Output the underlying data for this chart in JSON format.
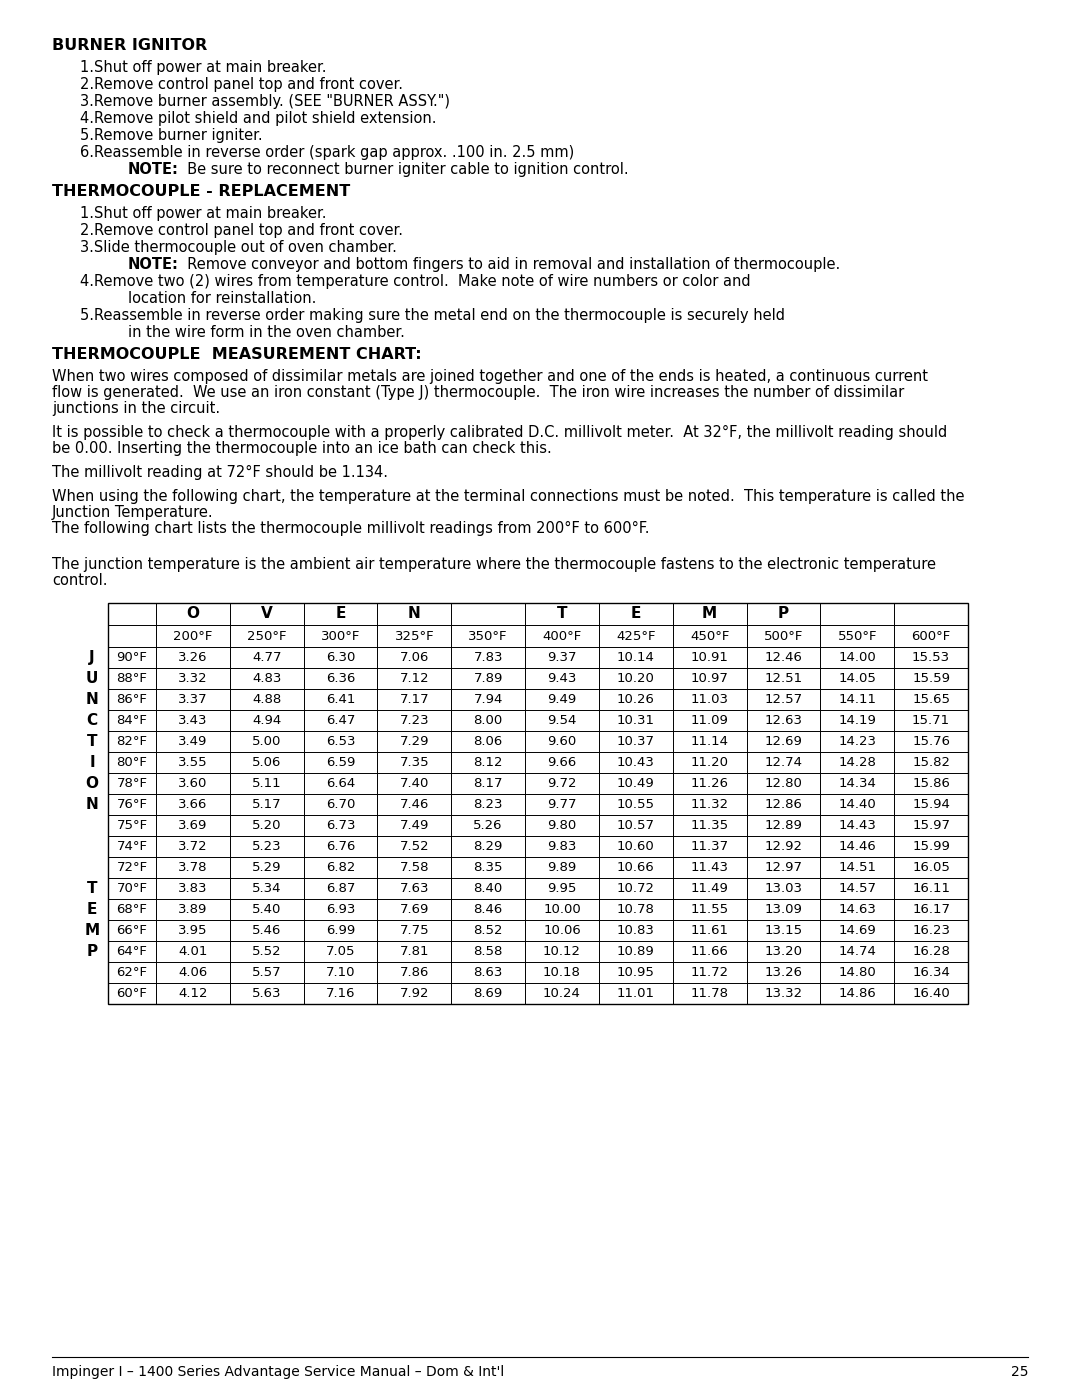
{
  "page_title": "BURNER IGNITOR",
  "burner_ignitor_steps": [
    "1.Shut off power at main breaker.",
    "2.Remove control panel top and front cover.",
    "3.Remove burner assembly. (SEE \"BURNER ASSY.\")",
    "4.Remove pilot shield and pilot shield extension.",
    "5.Remove burner igniter.",
    "6.Reassemble in reverse order (spark gap approx. .100 in. 2.5 mm)"
  ],
  "burner_note": "Be sure to reconnect burner igniter cable to ignition control.",
  "thermocouple_title": "THERMOCOUPLE - REPLACEMENT",
  "thermocouple_steps": [
    "1.Shut off power at main breaker.",
    "2.Remove control panel top and front cover.",
    "3.Slide thermocouple out of oven chamber."
  ],
  "tc_note3": "Remove conveyor and bottom fingers to aid in removal and installation of thermocouple.",
  "tc_step4a": "4.Remove two (2) wires from temperature control.  Make note of wire numbers or color and",
  "tc_step4b": "location for reinstallation.",
  "tc_step5a": "5.Reassemble in reverse order making sure the metal end on the thermocouple is securely held",
  "tc_step5b": "in the wire form in the oven chamber.",
  "measurement_title": "THERMOCOUPLE  MEASUREMENT CHART",
  "para1a": "When two wires composed of dissimilar metals are joined together and one of the ends is heated, a continuous current",
  "para1b": "flow is generated.  We use an iron constant (Type J) thermocouple.  The iron wire increases the number of dissimilar",
  "para1c": "junctions in the circuit.",
  "para2a": "It is possible to check a thermocouple with a properly calibrated D.C. millivolt meter.  At 32°F, the millivolt reading should",
  "para2b": "be 0.00. Inserting the thermocouple into an ice bath can check this.",
  "para3": "The millivolt reading at 72°F should be 1.134.",
  "para4a": "When using the following chart, the temperature at the terminal connections must be noted.  This temperature is called the",
  "para4b": "Junction Temperature.",
  "para4c": "The following chart lists the thermocouple millivolt readings from 200°F to 600°F.",
  "para5a": "The junction temperature is the ambient air temperature where the thermocouple fastens to the electronic temperature",
  "para5b": "control.",
  "table_rows": [
    [
      "90°F",
      "3.26",
      "4.77",
      "6.30",
      "7.06",
      "7.83",
      "9.37",
      "10.14",
      "10.91",
      "12.46",
      "14.00",
      "15.53"
    ],
    [
      "88°F",
      "3.32",
      "4.83",
      "6.36",
      "7.12",
      "7.89",
      "9.43",
      "10.20",
      "10.97",
      "12.51",
      "14.05",
      "15.59"
    ],
    [
      "86°F",
      "3.37",
      "4.88",
      "6.41",
      "7.17",
      "7.94",
      "9.49",
      "10.26",
      "11.03",
      "12.57",
      "14.11",
      "15.65"
    ],
    [
      "84°F",
      "3.43",
      "4.94",
      "6.47",
      "7.23",
      "8.00",
      "9.54",
      "10.31",
      "11.09",
      "12.63",
      "14.19",
      "15.71"
    ],
    [
      "82°F",
      "3.49",
      "5.00",
      "6.53",
      "7.29",
      "8.06",
      "9.60",
      "10.37",
      "11.14",
      "12.69",
      "14.23",
      "15.76"
    ],
    [
      "80°F",
      "3.55",
      "5.06",
      "6.59",
      "7.35",
      "8.12",
      "9.66",
      "10.43",
      "11.20",
      "12.74",
      "14.28",
      "15.82"
    ],
    [
      "78°F",
      "3.60",
      "5.11",
      "6.64",
      "7.40",
      "8.17",
      "9.72",
      "10.49",
      "11.26",
      "12.80",
      "14.34",
      "15.86"
    ],
    [
      "76°F",
      "3.66",
      "5.17",
      "6.70",
      "7.46",
      "8.23",
      "9.77",
      "10.55",
      "11.32",
      "12.86",
      "14.40",
      "15.94"
    ],
    [
      "75°F",
      "3.69",
      "5.20",
      "6.73",
      "7.49",
      "5.26",
      "9.80",
      "10.57",
      "11.35",
      "12.89",
      "14.43",
      "15.97"
    ],
    [
      "74°F",
      "3.72",
      "5.23",
      "6.76",
      "7.52",
      "8.29",
      "9.83",
      "10.60",
      "11.37",
      "12.92",
      "14.46",
      "15.99"
    ],
    [
      "72°F",
      "3.78",
      "5.29",
      "6.82",
      "7.58",
      "8.35",
      "9.89",
      "10.66",
      "11.43",
      "12.97",
      "14.51",
      "16.05"
    ],
    [
      "70°F",
      "3.83",
      "5.34",
      "6.87",
      "7.63",
      "8.40",
      "9.95",
      "10.72",
      "11.49",
      "13.03",
      "14.57",
      "16.11"
    ],
    [
      "68°F",
      "3.89",
      "5.40",
      "6.93",
      "7.69",
      "8.46",
      "10.00",
      "10.78",
      "11.55",
      "13.09",
      "14.63",
      "16.17"
    ],
    [
      "66°F",
      "3.95",
      "5.46",
      "6.99",
      "7.75",
      "8.52",
      "10.06",
      "10.83",
      "11.61",
      "13.15",
      "14.69",
      "16.23"
    ],
    [
      "64°F",
      "4.01",
      "5.52",
      "7.05",
      "7.81",
      "8.58",
      "10.12",
      "10.89",
      "11.66",
      "13.20",
      "14.74",
      "16.28"
    ],
    [
      "62°F",
      "4.06",
      "5.57",
      "7.10",
      "7.86",
      "8.63",
      "10.18",
      "10.95",
      "11.72",
      "13.26",
      "14.80",
      "16.34"
    ],
    [
      "60°F",
      "4.12",
      "5.63",
      "7.16",
      "7.92",
      "8.69",
      "10.24",
      "11.01",
      "11.78",
      "13.32",
      "14.86",
      "16.40"
    ]
  ],
  "junction_labels": [
    "J",
    "U",
    "N",
    "C",
    "T",
    "I",
    "O",
    "N",
    "",
    "",
    "",
    "T",
    "E",
    "M",
    "P",
    "",
    ""
  ],
  "footer": "Impinger I – 1400 Series Advantage Service Manual – Dom & Int'l",
  "page_number": "25"
}
